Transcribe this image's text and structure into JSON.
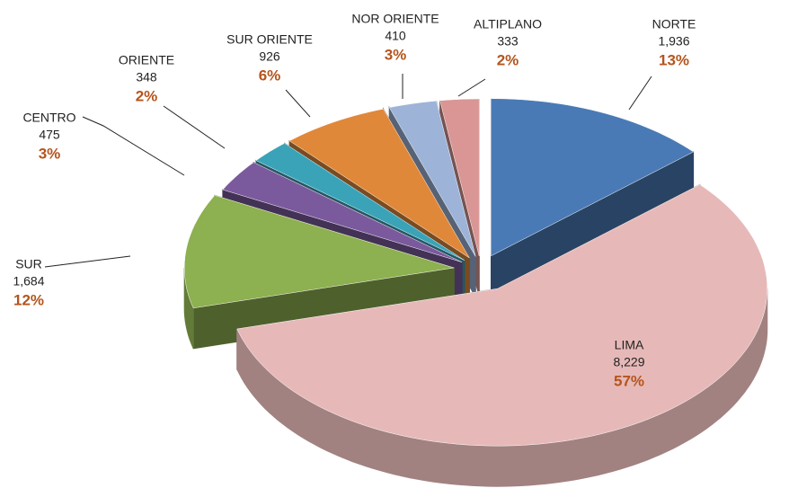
{
  "chart_data": {
    "type": "pie3d",
    "categories": [
      "NORTE",
      "LIMA",
      "SUR",
      "CENTRO",
      "ORIENTE",
      "SUR ORIENTE",
      "NOR ORIENTE",
      "ALTIPLANO"
    ],
    "values": [
      1936,
      8229,
      1684,
      475,
      348,
      926,
      410,
      333
    ],
    "value_labels": [
      "1,936",
      "8,229",
      "1,684",
      "475",
      "348",
      "926",
      "410",
      "333"
    ],
    "percent_labels": [
      "13%",
      "57%",
      "12%",
      "3%",
      "2%",
      "6%",
      "3%",
      "2%"
    ],
    "colors": [
      "#4a7ab5",
      "#e6b9b8",
      "#8db050",
      "#7a5a9c",
      "#3ba3b8",
      "#e0883a",
      "#9db4d8",
      "#d99694"
    ]
  }
}
